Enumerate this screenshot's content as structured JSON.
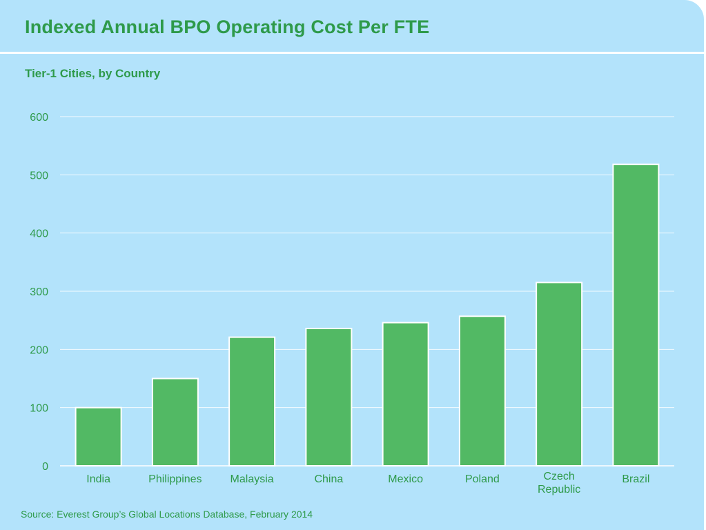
{
  "chart_data": {
    "type": "bar",
    "title": "Indexed Annual BPO Operating Cost Per FTE",
    "subtitle": "Tier-1 Cities, by Country",
    "categories": [
      "India",
      "Philippines",
      "Malaysia",
      "China",
      "Mexico",
      "Poland",
      "Czech Republic",
      "Brazil"
    ],
    "category_lines": [
      [
        "India"
      ],
      [
        "Philippines"
      ],
      [
        "Malaysia"
      ],
      [
        "China"
      ],
      [
        "Mexico"
      ],
      [
        "Poland"
      ],
      [
        "Czech",
        "Republic"
      ],
      [
        "Brazil"
      ]
    ],
    "values": [
      100,
      150,
      221,
      236,
      246,
      257,
      315,
      518
    ],
    "ylim": [
      0,
      600
    ],
    "yticks": [
      0,
      100,
      200,
      300,
      400,
      500,
      600
    ],
    "xlabel": "",
    "ylabel": "",
    "grid": true,
    "source": "Source: Everest Group’s Global Locations Database, February 2014"
  },
  "colors": {
    "background": "#b3e3fb",
    "bar": "#52b964",
    "bar_outline": "#ffffff",
    "text": "#2e9a4a",
    "grid": "#ffffff"
  }
}
